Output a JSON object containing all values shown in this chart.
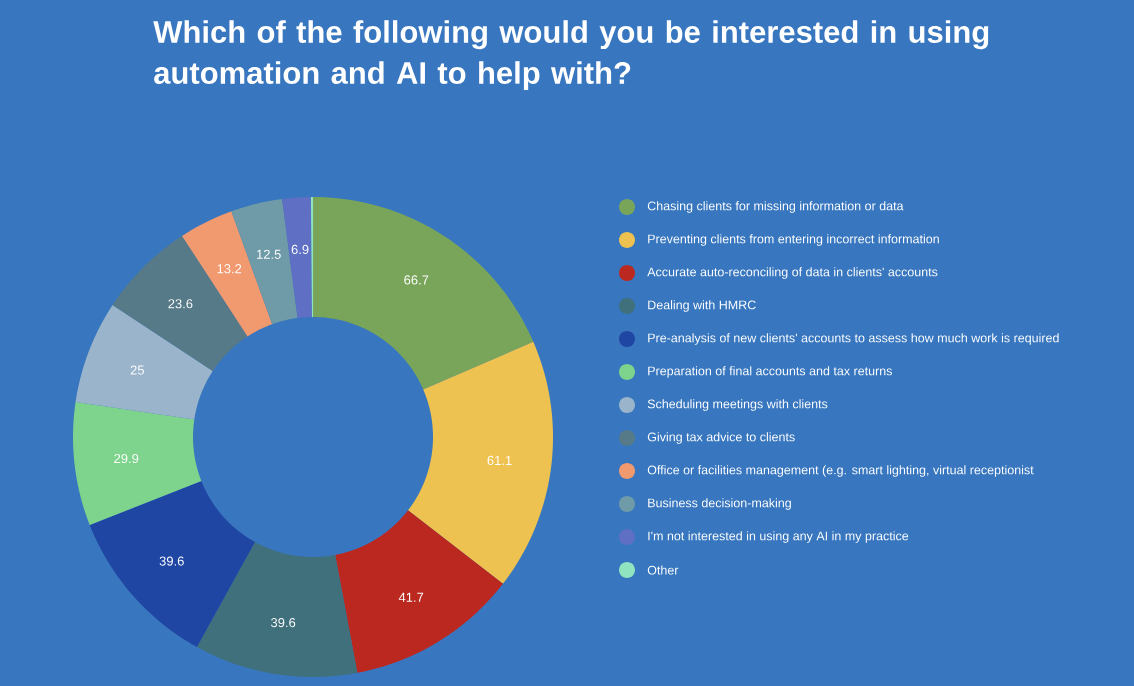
{
  "chart_data": {
    "type": "donut",
    "title": "Which of the following would you be interested in using automation and AI to help with?",
    "categories": [
      "Chasing clients for missing information or data",
      "Preventing clients from entering incorrect information",
      "Accurate auto-reconciling of data in clients' accounts",
      "Dealing with HMRC",
      "Pre-analysis of new clients' accounts to assess how much work is required",
      "Preparation of final accounts and tax returns",
      "Scheduling meetings with clients",
      "Giving tax advice to clients",
      "Office or facilities management (e.g. smart lighting, virtual receptionist",
      "Business decision-making",
      "I'm not interested in using any AI in my practice",
      "Other"
    ],
    "values": [
      66.7,
      61.1,
      41.7,
      39.6,
      39.6,
      29.9,
      25,
      23.6,
      13.2,
      12.5,
      6.9,
      0.5
    ],
    "value_labels": [
      "66.7",
      "61.1",
      "41.7",
      "39.6",
      "39.6",
      "29.9",
      "25",
      "23.6",
      "13.2",
      "12.5",
      "6.9",
      null
    ],
    "colors": [
      "#79a55a",
      "#eec250",
      "#bb2820",
      "#3f707c",
      "#2046a4",
      "#7ed48c",
      "#9ab4cb",
      "#577a88",
      "#f1996f",
      "#6f9aa8",
      "#5e6fc4",
      "#90e4c0"
    ],
    "legend": "right"
  }
}
